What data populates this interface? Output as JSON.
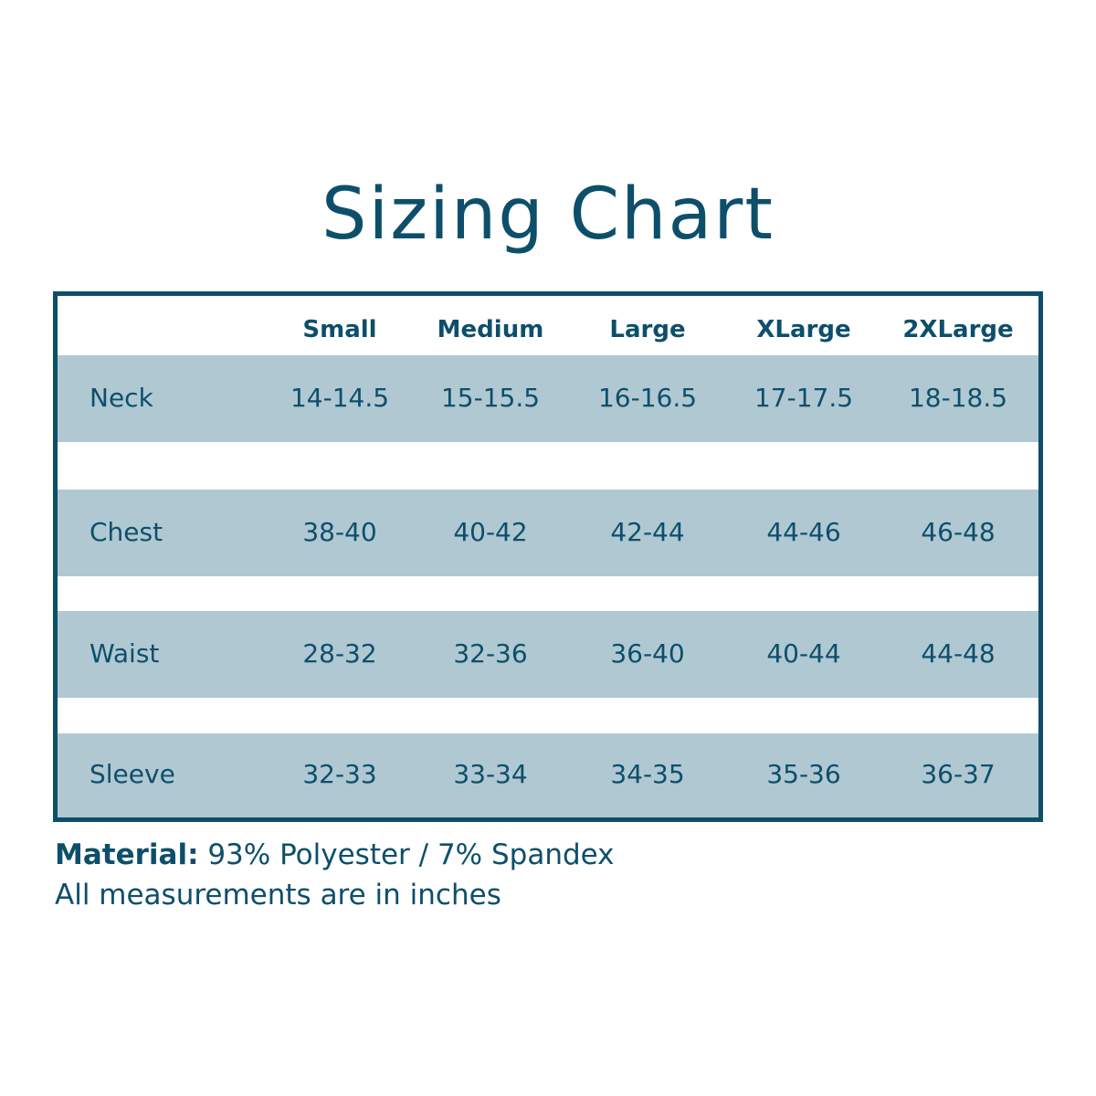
{
  "title": "Sizing Chart",
  "table": {
    "columns": [
      "Small",
      "Medium",
      "Large",
      "XLarge",
      "2XLarge"
    ],
    "rows": [
      {
        "label": "Neck",
        "values": [
          "14-14.5",
          "15-15.5",
          "16-16.5",
          "17-17.5",
          "18-18.5"
        ]
      },
      {
        "label": "Chest",
        "values": [
          "38-40",
          "40-42",
          "42-44",
          "44-46",
          "46-48"
        ]
      },
      {
        "label": "Waist",
        "values": [
          "28-32",
          "32-36",
          "36-40",
          "40-44",
          "44-48"
        ]
      },
      {
        "label": "Sleeve",
        "values": [
          "32-33",
          "33-34",
          "34-35",
          "35-36",
          "36-37"
        ]
      }
    ]
  },
  "footer": {
    "material_label": "Material:",
    "material_value": "93% Polyester / 7% Spandex",
    "note": "All measurements are in inches"
  },
  "colors": {
    "primary": "#0d4f6b",
    "band": "#b0c8d2",
    "background": "#ffffff"
  }
}
